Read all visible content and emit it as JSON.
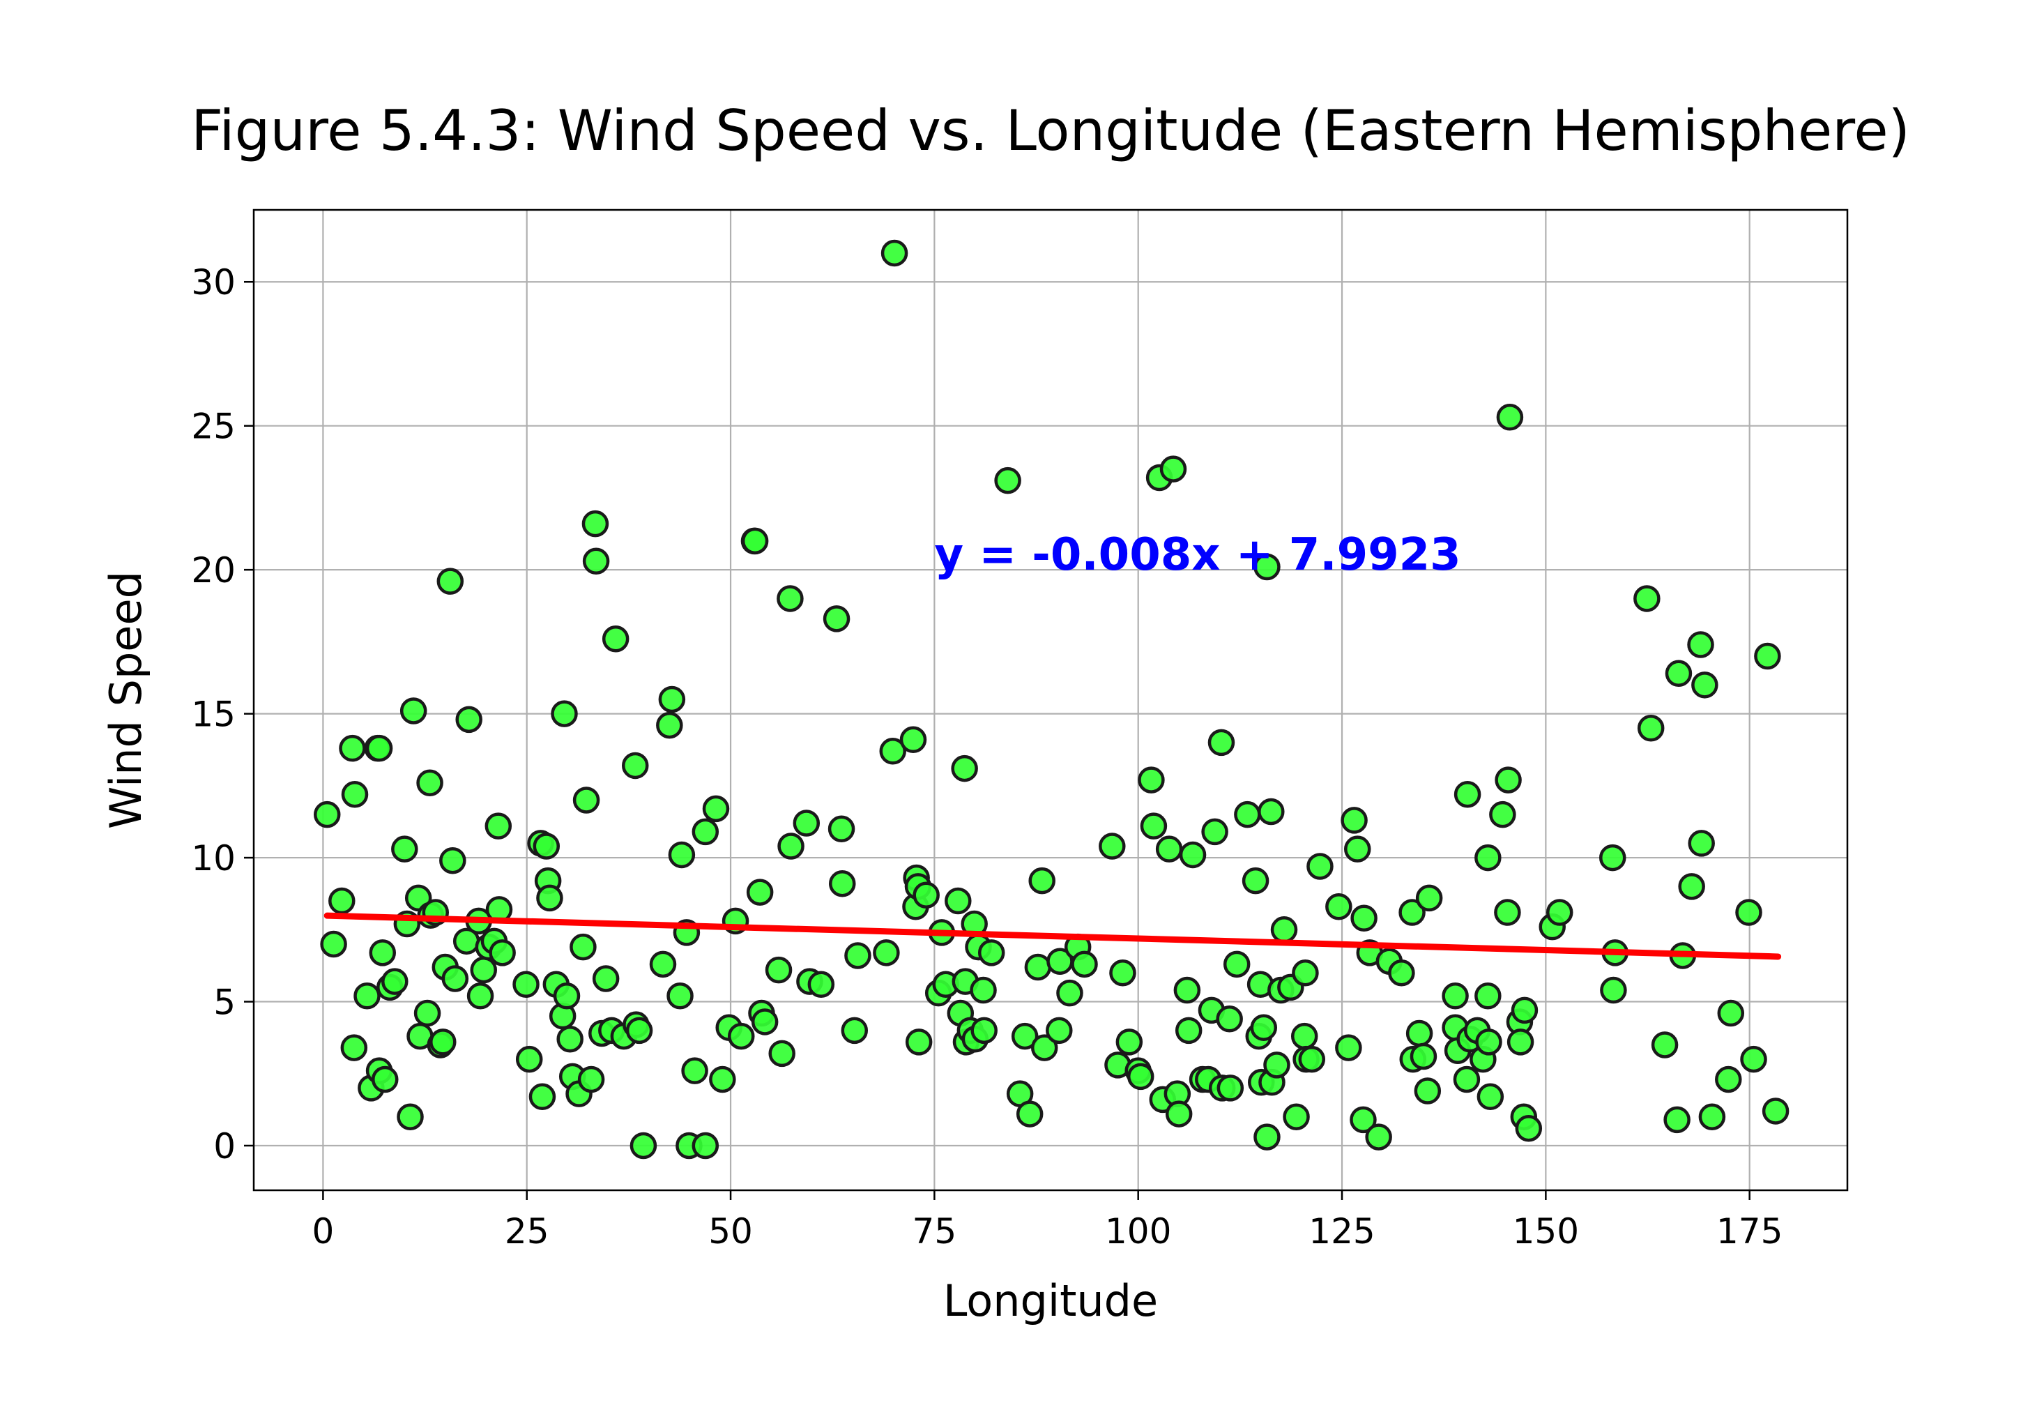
{
  "chart_data": {
    "type": "scatter",
    "title": "Figure 5.4.3: Wind Speed vs. Longitude (Eastern Hemisphere)",
    "xlabel": "Longitude",
    "ylabel": "Wind Speed",
    "xlim": [
      -8.5,
      187
    ],
    "ylim": [
      -1.55,
      32.5
    ],
    "xticks": [
      0,
      25,
      50,
      75,
      100,
      125,
      150,
      175
    ],
    "yticks": [
      0,
      5,
      10,
      15,
      20,
      25,
      30
    ],
    "grid": true,
    "marker_color": "#33ff33",
    "marker_edge_color": "#1a1a1a",
    "regression": {
      "equation": "y = -0.008x + 7.9923",
      "slope": -0.008,
      "intercept": 7.9923,
      "x_range": [
        0.5,
        178.5
      ],
      "color": "#ff0000",
      "label_color": "#0000ff",
      "label_x": 75,
      "label_y": 20
    },
    "series": [
      {
        "points": [
          [
            0.5,
            11.5
          ],
          [
            1.3,
            7.0
          ],
          [
            2.3,
            8.5
          ],
          [
            3.6,
            13.8
          ],
          [
            3.9,
            12.2
          ],
          [
            3.8,
            3.4
          ],
          [
            5.4,
            5.2
          ],
          [
            5.9,
            2.0
          ],
          [
            6.7,
            13.8
          ],
          [
            6.9,
            13.8
          ],
          [
            6.9,
            2.6
          ],
          [
            7.3,
            6.7
          ],
          [
            7.6,
            2.3
          ],
          [
            8.2,
            5.5
          ],
          [
            8.8,
            5.7
          ],
          [
            10.0,
            10.3
          ],
          [
            10.3,
            7.7
          ],
          [
            10.7,
            1.0
          ],
          [
            11.1,
            15.1
          ],
          [
            11.7,
            8.6
          ],
          [
            11.9,
            3.8
          ],
          [
            12.8,
            4.6
          ],
          [
            13.1,
            12.6
          ],
          [
            13.2,
            8.0
          ],
          [
            13.8,
            8.1
          ],
          [
            14.4,
            3.5
          ],
          [
            14.7,
            3.6
          ],
          [
            15.0,
            6.2
          ],
          [
            15.6,
            19.6
          ],
          [
            15.9,
            9.9
          ],
          [
            16.2,
            5.8
          ],
          [
            17.6,
            7.1
          ],
          [
            17.9,
            14.8
          ],
          [
            19.1,
            7.8
          ],
          [
            19.3,
            5.2
          ],
          [
            19.7,
            6.1
          ],
          [
            20.3,
            6.9
          ],
          [
            21.0,
            7.1
          ],
          [
            21.5,
            11.1
          ],
          [
            21.6,
            8.2
          ],
          [
            22.0,
            6.7
          ],
          [
            24.9,
            5.6
          ],
          [
            25.3,
            3.0
          ],
          [
            26.7,
            10.5
          ],
          [
            26.9,
            1.7
          ],
          [
            27.4,
            10.4
          ],
          [
            27.6,
            9.2
          ],
          [
            27.8,
            8.6
          ],
          [
            28.6,
            5.6
          ],
          [
            29.4,
            4.5
          ],
          [
            29.6,
            15.0
          ],
          [
            29.9,
            5.2
          ],
          [
            30.3,
            3.7
          ],
          [
            30.6,
            2.4
          ],
          [
            31.4,
            1.8
          ],
          [
            31.9,
            6.9
          ],
          [
            32.3,
            12.0
          ],
          [
            32.9,
            2.3
          ],
          [
            33.4,
            21.6
          ],
          [
            33.5,
            20.3
          ],
          [
            34.2,
            3.9
          ],
          [
            34.7,
            5.8
          ],
          [
            35.4,
            4.0
          ],
          [
            35.9,
            17.6
          ],
          [
            36.9,
            3.8
          ],
          [
            38.3,
            13.2
          ],
          [
            38.4,
            4.2
          ],
          [
            38.8,
            4.0
          ],
          [
            39.3,
            0.0
          ],
          [
            41.7,
            6.3
          ],
          [
            42.5,
            14.6
          ],
          [
            42.8,
            15.5
          ],
          [
            43.8,
            5.2
          ],
          [
            44.0,
            10.1
          ],
          [
            44.6,
            7.4
          ],
          [
            44.9,
            0.0
          ],
          [
            45.6,
            2.6
          ],
          [
            46.9,
            10.9
          ],
          [
            46.9,
            0.0
          ],
          [
            48.2,
            11.7
          ],
          [
            49.0,
            2.3
          ],
          [
            49.8,
            4.1
          ],
          [
            50.6,
            7.8
          ],
          [
            51.3,
            3.8
          ],
          [
            52.9,
            21.0
          ],
          [
            53.0,
            21.0
          ],
          [
            53.6,
            8.8
          ],
          [
            53.8,
            4.6
          ],
          [
            54.2,
            4.3
          ],
          [
            55.9,
            6.1
          ],
          [
            56.3,
            3.2
          ],
          [
            57.3,
            19.0
          ],
          [
            57.4,
            10.4
          ],
          [
            59.3,
            11.2
          ],
          [
            59.7,
            5.7
          ],
          [
            61.1,
            5.6
          ],
          [
            63.0,
            18.3
          ],
          [
            63.7,
            9.1
          ],
          [
            63.6,
            11.0
          ],
          [
            65.2,
            4.0
          ],
          [
            65.6,
            6.6
          ],
          [
            69.1,
            6.7
          ],
          [
            69.9,
            13.7
          ],
          [
            70.1,
            31.0
          ],
          [
            72.4,
            14.1
          ],
          [
            72.8,
            9.3
          ],
          [
            72.7,
            8.3
          ],
          [
            73.0,
            9.0
          ],
          [
            73.1,
            3.6
          ],
          [
            74.0,
            8.7
          ],
          [
            75.5,
            5.3
          ],
          [
            75.9,
            7.4
          ],
          [
            76.4,
            5.6
          ],
          [
            77.9,
            8.5
          ],
          [
            78.2,
            4.6
          ],
          [
            78.7,
            13.1
          ],
          [
            78.8,
            5.7
          ],
          [
            78.9,
            3.6
          ],
          [
            79.4,
            4.0
          ],
          [
            79.9,
            7.7
          ],
          [
            80.0,
            3.7
          ],
          [
            80.4,
            6.9
          ],
          [
            81.0,
            5.4
          ],
          [
            81.1,
            4.0
          ],
          [
            82.0,
            6.7
          ],
          [
            84.0,
            23.1
          ],
          [
            85.5,
            1.8
          ],
          [
            86.1,
            3.8
          ],
          [
            86.7,
            1.1
          ],
          [
            87.7,
            6.2
          ],
          [
            88.2,
            9.2
          ],
          [
            88.5,
            3.4
          ],
          [
            90.3,
            4.0
          ],
          [
            90.4,
            6.4
          ],
          [
            91.6,
            5.3
          ],
          [
            92.6,
            6.9
          ],
          [
            93.4,
            6.3
          ],
          [
            96.8,
            10.4
          ],
          [
            97.5,
            2.8
          ],
          [
            98.1,
            6.0
          ],
          [
            98.9,
            3.6
          ],
          [
            100.0,
            2.6
          ],
          [
            100.3,
            2.4
          ],
          [
            101.6,
            12.7
          ],
          [
            101.9,
            11.1
          ],
          [
            102.6,
            23.2
          ],
          [
            103.0,
            1.6
          ],
          [
            103.8,
            10.3
          ],
          [
            104.3,
            23.5
          ],
          [
            104.8,
            1.8
          ],
          [
            105.0,
            1.1
          ],
          [
            106.0,
            5.4
          ],
          [
            106.2,
            4.0
          ],
          [
            106.7,
            10.1
          ],
          [
            107.9,
            2.3
          ],
          [
            108.6,
            2.3
          ],
          [
            109.0,
            4.7
          ],
          [
            109.4,
            10.9
          ],
          [
            110.2,
            14.0
          ],
          [
            110.3,
            2.0
          ],
          [
            111.2,
            4.4
          ],
          [
            111.3,
            2.0
          ],
          [
            112.1,
            6.3
          ],
          [
            113.4,
            11.5
          ],
          [
            114.4,
            9.2
          ],
          [
            114.8,
            3.8
          ],
          [
            115.0,
            5.6
          ],
          [
            115.1,
            2.2
          ],
          [
            115.4,
            4.1
          ],
          [
            115.8,
            20.1
          ],
          [
            115.8,
            0.3
          ],
          [
            116.3,
            11.6
          ],
          [
            116.4,
            2.2
          ],
          [
            117.0,
            2.8
          ],
          [
            117.5,
            5.4
          ],
          [
            117.9,
            7.5
          ],
          [
            118.7,
            5.5
          ],
          [
            119.4,
            1.0
          ],
          [
            120.4,
            3.8
          ],
          [
            120.5,
            6.0
          ],
          [
            120.6,
            3.0
          ],
          [
            121.3,
            3.0
          ],
          [
            122.3,
            9.7
          ],
          [
            124.6,
            8.3
          ],
          [
            125.8,
            3.4
          ],
          [
            126.5,
            11.3
          ],
          [
            126.9,
            10.3
          ],
          [
            127.6,
            0.9
          ],
          [
            127.7,
            7.9
          ],
          [
            128.4,
            6.7
          ],
          [
            129.5,
            0.3
          ],
          [
            130.8,
            6.4
          ],
          [
            132.3,
            6.0
          ],
          [
            133.6,
            8.1
          ],
          [
            133.7,
            3.0
          ],
          [
            134.5,
            3.9
          ],
          [
            135.0,
            3.1
          ],
          [
            135.5,
            1.9
          ],
          [
            135.7,
            8.6
          ],
          [
            138.9,
            5.2
          ],
          [
            138.9,
            4.1
          ],
          [
            139.2,
            3.3
          ],
          [
            140.4,
            12.2
          ],
          [
            140.3,
            2.3
          ],
          [
            140.7,
            3.7
          ],
          [
            141.6,
            4.0
          ],
          [
            142.3,
            3.0
          ],
          [
            142.9,
            5.2
          ],
          [
            142.9,
            10.0
          ],
          [
            143.0,
            3.6
          ],
          [
            143.2,
            1.7
          ],
          [
            144.7,
            11.5
          ],
          [
            145.3,
            8.1
          ],
          [
            145.4,
            12.7
          ],
          [
            145.6,
            25.3
          ],
          [
            146.8,
            4.3
          ],
          [
            146.9,
            3.6
          ],
          [
            147.3,
            1.0
          ],
          [
            147.4,
            4.7
          ],
          [
            147.9,
            0.6
          ],
          [
            150.8,
            7.6
          ],
          [
            151.7,
            8.1
          ],
          [
            158.2,
            10.0
          ],
          [
            158.3,
            5.4
          ],
          [
            158.5,
            6.7
          ],
          [
            162.4,
            19.0
          ],
          [
            162.9,
            14.5
          ],
          [
            164.6,
            3.5
          ],
          [
            166.1,
            0.9
          ],
          [
            166.3,
            16.4
          ],
          [
            166.8,
            6.6
          ],
          [
            167.9,
            9.0
          ],
          [
            169.0,
            17.4
          ],
          [
            169.1,
            10.5
          ],
          [
            169.5,
            16.0
          ],
          [
            170.4,
            1.0
          ],
          [
            172.4,
            2.3
          ],
          [
            172.7,
            4.6
          ],
          [
            174.9,
            8.1
          ],
          [
            175.5,
            3.0
          ],
          [
            177.2,
            17.0
          ],
          [
            178.2,
            1.2
          ]
        ]
      }
    ]
  }
}
